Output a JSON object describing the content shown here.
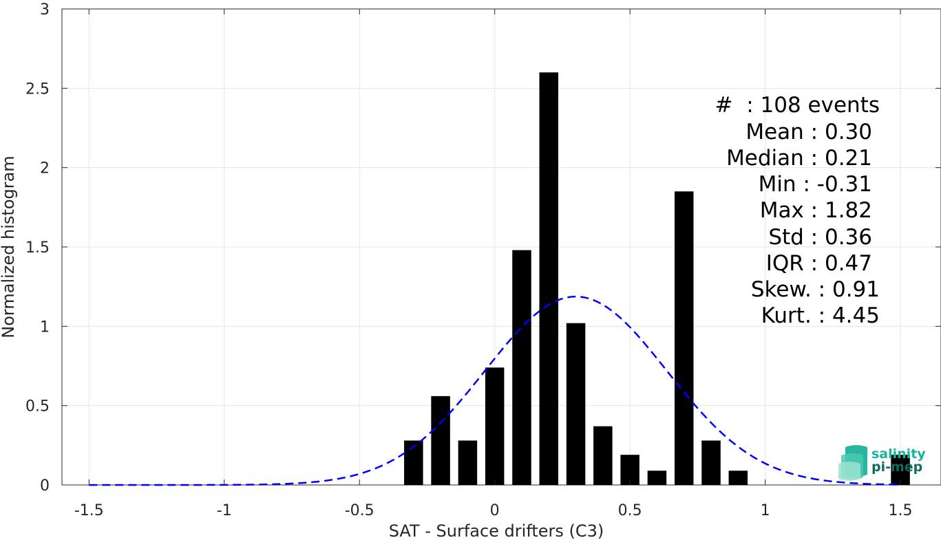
{
  "chart_data": {
    "type": "bar",
    "xlabel": "SAT - Surface drifters (C3)",
    "ylabel": "Normalized histogram",
    "xlim": [
      -1.6,
      1.65
    ],
    "ylim": [
      0,
      3
    ],
    "xticks": [
      -1.5,
      -1,
      -0.5,
      0,
      0.5,
      1,
      1.5
    ],
    "xtick_labels": [
      "-1.5",
      "-1",
      "-0.5",
      "0",
      "0.5",
      "1",
      "1.5"
    ],
    "yticks": [
      0,
      0.5,
      1,
      1.5,
      2,
      2.5,
      3
    ],
    "ytick_labels": [
      "0",
      "0.5",
      "1",
      "1.5",
      "2",
      "2.5",
      "3"
    ],
    "grid": true,
    "bar_color": "#000000",
    "bar_width": 0.07,
    "bars": [
      {
        "x": -0.3,
        "value": 0.28
      },
      {
        "x": -0.2,
        "value": 0.56
      },
      {
        "x": -0.1,
        "value": 0.28
      },
      {
        "x": 0.0,
        "value": 0.74
      },
      {
        "x": 0.1,
        "value": 1.48
      },
      {
        "x": 0.2,
        "value": 2.6
      },
      {
        "x": 0.3,
        "value": 1.02
      },
      {
        "x": 0.4,
        "value": 0.37
      },
      {
        "x": 0.5,
        "value": 0.19
      },
      {
        "x": 0.6,
        "value": 0.09
      },
      {
        "x": 0.7,
        "value": 1.85
      },
      {
        "x": 0.8,
        "value": 0.28
      },
      {
        "x": 0.9,
        "value": 0.09
      },
      {
        "x": 1.5,
        "value": 0.19
      }
    ],
    "fit_curve": {
      "style": "dashed",
      "color": "#0000ff",
      "mean": 0.3,
      "std": 0.336,
      "x_range": [
        -1.5,
        1.5
      ]
    },
    "stats": {
      "count_line": "#  : 108 events",
      "lines": [
        "Mean : 0.30",
        "Median : 0.21",
        "Min : -0.31",
        "Max : 1.82",
        "Std : 0.36",
        "IQR : 0.47",
        "Skew. : 0.91",
        "Kurt. : 4.45"
      ]
    }
  },
  "logo": {
    "line1": "salinity",
    "line2": "pi-mep",
    "color_primary": "#1bb39a",
    "color_secondary": "#0f6b5c"
  }
}
